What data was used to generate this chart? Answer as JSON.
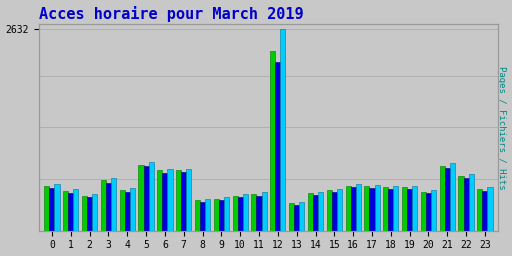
{
  "title": "Acces horaire pour March 2019",
  "title_color": "#0000cc",
  "title_fontsize": 11,
  "ylabel_right": "Pages / Fichiers / Hits",
  "ylabel_right_color": "#008888",
  "background_color": "#c8c8c8",
  "plot_bg_color": "#c8c8c8",
  "grid_color": "#b0b0b0",
  "hours": [
    0,
    1,
    2,
    3,
    4,
    5,
    6,
    7,
    8,
    9,
    10,
    11,
    12,
    13,
    14,
    15,
    16,
    17,
    18,
    19,
    20,
    21,
    22,
    23
  ],
  "pages": [
    580,
    520,
    460,
    660,
    530,
    860,
    790,
    790,
    400,
    420,
    460,
    480,
    2350,
    360,
    490,
    530,
    590,
    580,
    570,
    565,
    510,
    840,
    720,
    545
  ],
  "fichiers": [
    560,
    495,
    440,
    630,
    505,
    840,
    760,
    765,
    380,
    400,
    440,
    460,
    2200,
    340,
    470,
    510,
    570,
    560,
    550,
    545,
    490,
    815,
    695,
    520
  ],
  "hits": [
    610,
    545,
    485,
    695,
    555,
    900,
    810,
    810,
    420,
    440,
    480,
    500,
    2632,
    380,
    510,
    550,
    610,
    600,
    590,
    585,
    530,
    880,
    745,
    565
  ],
  "ylim": [
    0,
    2700
  ],
  "ytick_val": 2632,
  "color_pages": "#00cc00",
  "color_fichiers": "#0000dd",
  "color_hits": "#00ccff",
  "bar_width": 0.27,
  "font_family": "monospace"
}
